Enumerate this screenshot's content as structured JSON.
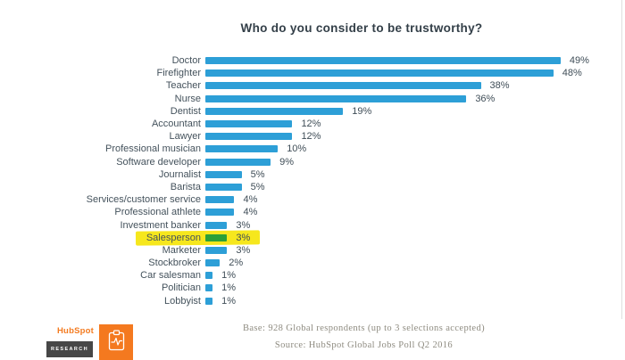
{
  "chart_data": {
    "type": "bar",
    "orientation": "horizontal",
    "title": "Who do you consider to be trustworthy?",
    "unit": "%",
    "categories": [
      "Doctor",
      "Firefighter",
      "Teacher",
      "Nurse",
      "Dentist",
      "Accountant",
      "Lawyer",
      "Professional musician",
      "Software developer",
      "Journalist",
      "Barista",
      "Services/customer service",
      "Professional athlete",
      "Investment banker",
      "Salesperson",
      "Marketer",
      "Stockbroker",
      "Car salesman",
      "Politician",
      "Lobbyist"
    ],
    "values": [
      49,
      48,
      38,
      36,
      19,
      12,
      12,
      10,
      9,
      5,
      5,
      4,
      4,
      3,
      3,
      3,
      2,
      1,
      1,
      1
    ],
    "xlim": [
      0,
      50
    ],
    "grid": false,
    "legend": "none",
    "bar_color": "#2d9fd7",
    "highlight": {
      "category": "Salesperson",
      "index": 14,
      "marker_color": "#f6e71d",
      "bar_color": "#2aa038"
    }
  },
  "footer": {
    "base_note": "Base: 928 Global respondents (up to 3 selections accepted)",
    "source_note": "Source: HubSpot Global Jobs Poll Q2 2016"
  },
  "branding": {
    "logo_text": "HubSpot",
    "research_label": "RESEARCH",
    "logo_color": "#f47b20",
    "badge_color": "#474747",
    "report_tile_color": "#f4791f"
  }
}
